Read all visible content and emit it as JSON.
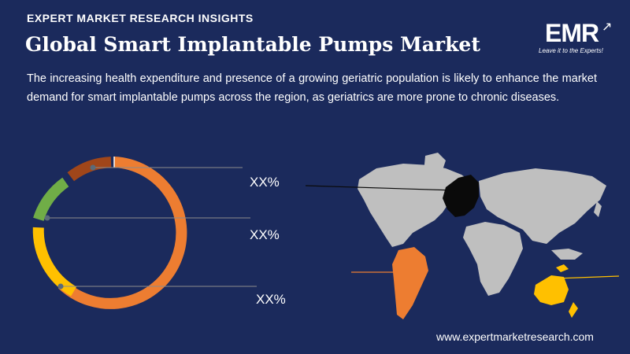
{
  "header": {
    "kicker": "EXPERT MARKET RESEARCH INSIGHTS",
    "title": "Global Smart Implantable Pumps Market",
    "description": "The increasing health expenditure and presence of a growing geriatric population is likely to enhance the market demand for smart implantable pumps across the region, as geriatrics are more prone to chronic diseases."
  },
  "logo": {
    "text": "EMR",
    "tagline": "Leave it to the Experts!"
  },
  "ring_labels": [
    "XX%",
    "XX%",
    "XX%"
  ],
  "footer": {
    "url": "www.expertmarketresearch.com"
  },
  "colors": {
    "background": "#1b2a5c",
    "orange": "#ed7d31",
    "yellow": "#ffc000",
    "green": "#70ad47",
    "brown": "#a0461a",
    "map_grey": "#bfbfbf",
    "europe": "#0a0a0a"
  }
}
